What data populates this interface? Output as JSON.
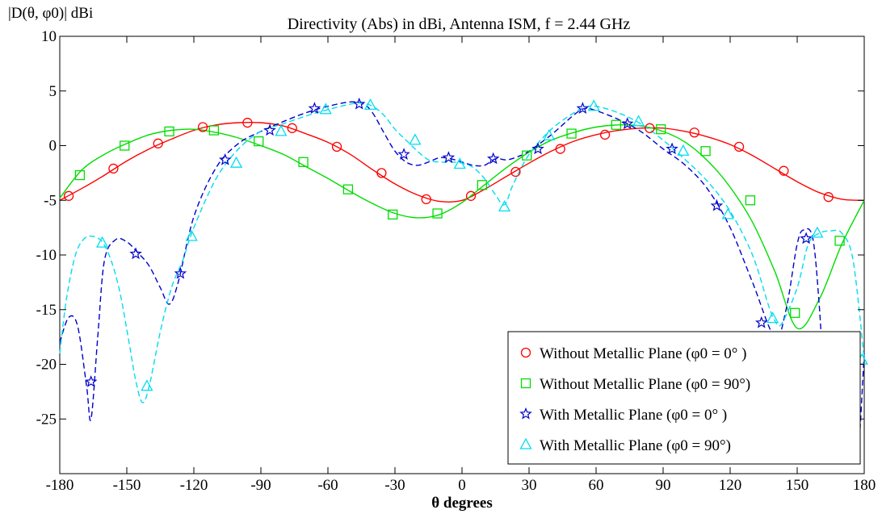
{
  "chart_data": {
    "type": "line",
    "title": "Directivity (Abs) in dBi, Antenna ISM, f = 2.44 GHz",
    "ylabel": "|D(θ, φ0)| dBi",
    "xlabel": "θ degrees",
    "xlim": [
      -180,
      180
    ],
    "ylim": [
      -30,
      10
    ],
    "xticks": [
      -180,
      -150,
      -120,
      -90,
      -60,
      -30,
      0,
      30,
      60,
      90,
      120,
      150,
      180
    ],
    "yticks": [
      -25,
      -20,
      -15,
      -10,
      -5,
      0,
      5,
      10
    ],
    "grid": false,
    "legend_position": "bottom-right",
    "series": [
      {
        "name": "Without Metallic Plane (φ0 = 0° )",
        "color": "#ff0000",
        "line_style": "solid",
        "marker": "circle",
        "x": [
          -180,
          -170,
          -160,
          -150,
          -140,
          -130,
          -120,
          -110,
          -100,
          -90,
          -80,
          -70,
          -60,
          -50,
          -40,
          -30,
          -20,
          -10,
          0,
          10,
          20,
          30,
          40,
          50,
          60,
          70,
          80,
          90,
          100,
          110,
          120,
          130,
          140,
          150,
          160,
          170,
          180
        ],
        "y": [
          -5.0,
          -3.9,
          -2.7,
          -1.4,
          -0.3,
          0.6,
          1.4,
          1.9,
          2.1,
          2.1,
          1.8,
          1.1,
          0.3,
          -0.8,
          -2.2,
          -3.5,
          -4.5,
          -5.1,
          -5.0,
          -4.0,
          -2.8,
          -1.6,
          -0.5,
          0.4,
          1.0,
          1.4,
          1.6,
          1.6,
          1.3,
          0.8,
          0.1,
          -0.9,
          -2.1,
          -3.3,
          -4.3,
          -4.9,
          -5.0
        ],
        "marker_x": [
          -176,
          -156,
          -136,
          -116,
          -96,
          -76,
          -56,
          -36,
          -16,
          4,
          24,
          44,
          64,
          84,
          104,
          124,
          144,
          164
        ],
        "marker_y": [
          -4.6,
          -2.1,
          0.2,
          1.7,
          2.1,
          1.6,
          -0.1,
          -2.5,
          -4.9,
          -4.6,
          -2.4,
          -0.3,
          1.0,
          1.6,
          1.2,
          -0.1,
          -2.3,
          -4.7
        ]
      },
      {
        "name": "Without Metallic Plane (φ0 = 90°)",
        "color": "#00dd00",
        "line_style": "solid",
        "marker": "square",
        "x": [
          -180,
          -170,
          -160,
          -150,
          -140,
          -130,
          -120,
          -110,
          -100,
          -90,
          -80,
          -70,
          -60,
          -50,
          -40,
          -30,
          -20,
          -10,
          0,
          10,
          20,
          30,
          40,
          50,
          60,
          70,
          80,
          90,
          100,
          110,
          120,
          130,
          140,
          150,
          160,
          170,
          180
        ],
        "y": [
          -4.8,
          -2.2,
          -0.8,
          0.2,
          1.0,
          1.4,
          1.5,
          1.2,
          0.7,
          0.0,
          -0.8,
          -1.9,
          -3.0,
          -4.2,
          -5.3,
          -6.2,
          -6.6,
          -6.3,
          -5.2,
          -3.6,
          -2.0,
          -0.6,
          0.5,
          1.2,
          1.7,
          1.9,
          1.8,
          1.3,
          0.3,
          -1.4,
          -3.8,
          -7.0,
          -11.5,
          -16.7,
          -14.0,
          -9.0,
          -5.0
        ],
        "marker_x": [
          -171,
          -151,
          -131,
          -111,
          -91,
          -71,
          -51,
          -31,
          -11,
          9,
          29,
          49,
          69,
          89,
          109,
          129,
          149,
          169
        ],
        "marker_y": [
          -2.7,
          0.0,
          1.3,
          1.4,
          0.4,
          -1.5,
          -4.0,
          -6.3,
          -6.2,
          -3.6,
          -0.9,
          1.1,
          1.9,
          1.5,
          -0.5,
          -5.0,
          -15.3,
          -8.7
        ]
      },
      {
        "name": "With Metallic Plane (φ0 = 0° )",
        "color": "#0000cc",
        "line_style": "dashed",
        "marker": "star",
        "x": [
          -180,
          -176,
          -172,
          -168,
          -166,
          -163,
          -160,
          -155,
          -150,
          -145,
          -140,
          -135,
          -131,
          -127,
          -120,
          -110,
          -100,
          -90,
          -80,
          -70,
          -60,
          -50,
          -44,
          -40,
          -35,
          -30,
          -25,
          -20,
          -15,
          -10,
          -5,
          0,
          5,
          10,
          15,
          20,
          25,
          30,
          40,
          50,
          55,
          60,
          70,
          80,
          90,
          100,
          110,
          120,
          130,
          140,
          145,
          150,
          153,
          157,
          160,
          163,
          166,
          169,
          172,
          174,
          177,
          180
        ],
        "y": [
          -18.0,
          -15.7,
          -16.5,
          -22.0,
          -25.0,
          -17.5,
          -10.5,
          -8.6,
          -8.8,
          -9.8,
          -11.0,
          -13.0,
          -14.5,
          -12.5,
          -6.5,
          -2.0,
          0.2,
          1.3,
          2.2,
          3.0,
          3.6,
          4.0,
          3.8,
          3.0,
          1.2,
          -0.5,
          -1.5,
          -1.8,
          -1.5,
          -1.1,
          -1.2,
          -1.5,
          -1.8,
          -1.8,
          -1.2,
          -1.3,
          -1.0,
          -0.5,
          1.0,
          2.8,
          3.4,
          3.2,
          2.4,
          1.3,
          -0.3,
          -1.8,
          -4.0,
          -7.5,
          -12.5,
          -17.5,
          -15.0,
          -9.0,
          -7.7,
          -8.5,
          -15.0,
          -25.0,
          -28.5,
          -21.5,
          -21.0,
          -25.0,
          -28.5,
          -19.0
        ],
        "marker_x": [
          -166,
          -146,
          -126,
          -106,
          -86,
          -66,
          -46,
          -26,
          -6,
          14,
          34,
          54,
          74,
          94,
          114,
          134,
          154,
          174
        ],
        "marker_y": [
          -21.6,
          -9.9,
          -11.7,
          -1.3,
          1.4,
          3.4,
          3.8,
          -0.8,
          -1.1,
          -1.2,
          -0.3,
          3.4,
          2.0,
          -0.3,
          -5.5,
          -16.2,
          -8.5,
          -24.8
        ]
      },
      {
        "name": "With Metallic Plane (φ0 = 90°)",
        "color": "#00ddee",
        "line_style": "dashed",
        "marker": "triangle",
        "x": [
          -180,
          -177,
          -173,
          -169,
          -165,
          -161,
          -157,
          -153,
          -149,
          -146,
          -143,
          -140,
          -135,
          -130,
          -125,
          -120,
          -110,
          -100,
          -90,
          -80,
          -70,
          -60,
          -50,
          -45,
          -40,
          -35,
          -30,
          -25,
          -20,
          -15,
          -10,
          -5,
          0,
          5,
          10,
          15,
          19,
          23,
          30,
          40,
          50,
          55,
          60,
          70,
          80,
          90,
          100,
          110,
          120,
          130,
          137,
          140,
          143,
          150,
          155,
          160,
          165,
          170,
          175,
          180
        ],
        "y": [
          -19.0,
          -14.0,
          -10.0,
          -8.5,
          -8.3,
          -8.8,
          -10.5,
          -13.5,
          -18.0,
          -21.5,
          -23.5,
          -22.0,
          -17.0,
          -13.0,
          -10.5,
          -7.5,
          -3.0,
          -0.3,
          1.3,
          2.0,
          2.7,
          3.3,
          3.8,
          3.9,
          3.6,
          2.8,
          1.5,
          0.5,
          -0.5,
          -1.3,
          -1.5,
          -1.5,
          -1.6,
          -2.0,
          -3.0,
          -4.5,
          -5.4,
          -3.5,
          -0.8,
          1.5,
          3.0,
          3.5,
          3.6,
          3.0,
          2.0,
          0.5,
          -1.3,
          -3.3,
          -6.0,
          -10.0,
          -14.5,
          -16.0,
          -16.3,
          -13.0,
          -9.0,
          -8.0,
          -7.8,
          -8.0,
          -10.5,
          -19.5
        ],
        "marker_x": [
          -161,
          -141,
          -121,
          -101,
          -81,
          -61,
          -41,
          -21,
          -1,
          19,
          39,
          59,
          79,
          99,
          119,
          139,
          159,
          179
        ],
        "marker_y": [
          -8.9,
          -22.0,
          -8.3,
          -1.6,
          1.3,
          3.3,
          3.7,
          0.5,
          -1.7,
          -5.6,
          0.9,
          3.6,
          2.2,
          -0.5,
          -6.3,
          -15.8,
          -8.0,
          -19.6
        ]
      }
    ]
  }
}
